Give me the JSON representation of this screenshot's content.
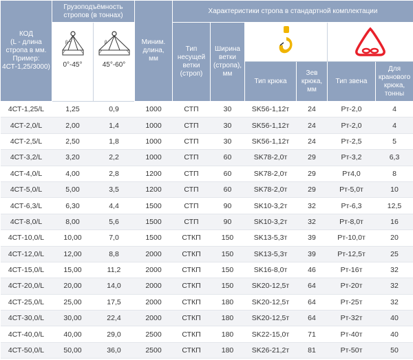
{
  "header": {
    "code_col": "КОД\n(L - длина\nстропа в мм.\nПример:\n4СТ-1,25/3000)",
    "capacity_group": "Грузоподъёмность\nстропов (в тоннах)",
    "angle_1": "0°-45°",
    "angle_2": "45°-60°",
    "min_length": "Миним.\nдлина,\nмм",
    "characteristics_group": "Характеристики стропа в стандартной комплектации",
    "branch_type": "Тип\nнесущей\nветки\n(строп)",
    "branch_width": "Ширина\nветки\n(стропа),\nмм",
    "hook_type": "Тип крюка",
    "hook_gap": "Зев\nкрюка,\nмм",
    "link_type": "Тип звена",
    "crane_hook": "Для\nкранового\nкрюка,\nтонны",
    "colors": {
      "header_bg": "#8fa2bf",
      "hook_icon": "#f0b400",
      "link_icon": "#e8202a"
    }
  },
  "rows": [
    [
      "4СТ-1,25/L",
      "1,25",
      "0,9",
      "1000",
      "СТП",
      "30",
      "SK56-1,12т",
      "24",
      "Рт-2,0",
      "4"
    ],
    [
      "4СТ-2,0/L",
      "2,00",
      "1,4",
      "1000",
      "СТП",
      "30",
      "SK56-1,12т",
      "24",
      "Рт-2,0",
      "4"
    ],
    [
      "4СТ-2,5/L",
      "2,50",
      "1,8",
      "1000",
      "СТП",
      "30",
      "SK56-1,12т",
      "24",
      "Рт-2,5",
      "5"
    ],
    [
      "4СТ-3,2/L",
      "3,20",
      "2,2",
      "1000",
      "СТП",
      "60",
      "SK78-2,0т",
      "29",
      "Рт-3,2",
      "6,3"
    ],
    [
      "4СТ-4,0/L",
      "4,00",
      "2,8",
      "1200",
      "СТП",
      "60",
      "SK78-2,0т",
      "29",
      "Рт4,0",
      "8"
    ],
    [
      "4СТ-5,0/L",
      "5,00",
      "3,5",
      "1200",
      "СТП",
      "60",
      "SK78-2,0т",
      "29",
      "Рт-5,0т",
      "10"
    ],
    [
      "4СТ-6,3/L",
      "6,30",
      "4,4",
      "1500",
      "СТП",
      "90",
      "SK10-3,2т",
      "32",
      "Рт-6,3",
      "12,5"
    ],
    [
      "4СТ-8,0/L",
      "8,00",
      "5,6",
      "1500",
      "СТП",
      "90",
      "SK10-3,2т",
      "32",
      "Рт-8,0т",
      "16"
    ],
    [
      "4СТ-10,0/L",
      "10,00",
      "7,0",
      "1500",
      "СТКП",
      "150",
      "SK13-5,3т",
      "39",
      "Рт-10,0т",
      "20"
    ],
    [
      "4СТ-12,0/L",
      "12,00",
      "8,8",
      "2000",
      "СТКП",
      "150",
      "SK13-5,3т",
      "39",
      "Рт-12,5т",
      "25"
    ],
    [
      "4СТ-15,0/L",
      "15,00",
      "11,2",
      "2000",
      "СТКП",
      "150",
      "SK16-8,0т",
      "46",
      "Рт-16т",
      "32"
    ],
    [
      "4СТ-20,0/L",
      "20,00",
      "14,0",
      "2000",
      "СТКП",
      "150",
      "SK20-12,5т",
      "64",
      "Рт-20т",
      "32"
    ],
    [
      "4СТ-25,0/L",
      "25,00",
      "17,5",
      "2000",
      "СТКП",
      "180",
      "SK20-12,5т",
      "64",
      "Рт-25т",
      "32"
    ],
    [
      "4СТ-30,0/L",
      "30,00",
      "22,4",
      "2000",
      "СТКП",
      "180",
      "SK20-12,5т",
      "64",
      "Рт-32т",
      "40"
    ],
    [
      "4СТ-40,0/L",
      "40,00",
      "29,0",
      "2500",
      "СТКП",
      "180",
      "SK22-15,0т",
      "71",
      "Рт-40т",
      "40"
    ],
    [
      "4СТ-50,0/L",
      "50,00",
      "36,0",
      "2500",
      "СТКП",
      "180",
      "SK26-21,2т",
      "81",
      "Рт-50т",
      "50"
    ]
  ]
}
